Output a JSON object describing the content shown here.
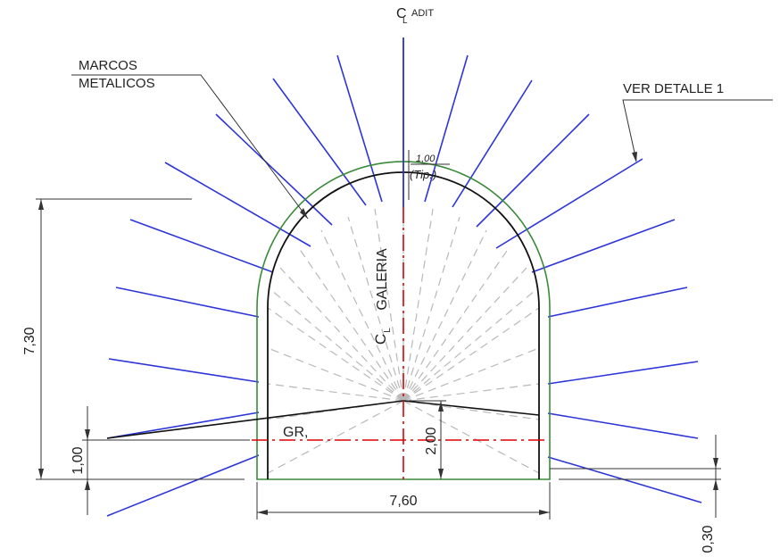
{
  "colors": {
    "outer_contour": "#3a8a3a",
    "metal_frame": "#111111",
    "rock_bolts": "#2d35d8",
    "centerline": "#e00000",
    "construction_rays": "#b8b8b8"
  },
  "labels": {
    "adit_c": "C",
    "adit_l": "L",
    "adit_text": "ADIT",
    "marcos_line1": "MARCOS",
    "marcos_line2": "METALICOS",
    "ver_detalle": "VER DETALLE 1",
    "tip_spacing": "1,00",
    "tip_text": "(Tip.)",
    "galeria_c": "C",
    "galeria_l": "L",
    "galeria_text": "GALERIA",
    "gr": "GR,",
    "dim_height_total": "7,30",
    "dim_height_left": "1,00",
    "dim_height_center": "2,00",
    "dim_width": "7,60",
    "dim_floor_right": "0,30"
  }
}
